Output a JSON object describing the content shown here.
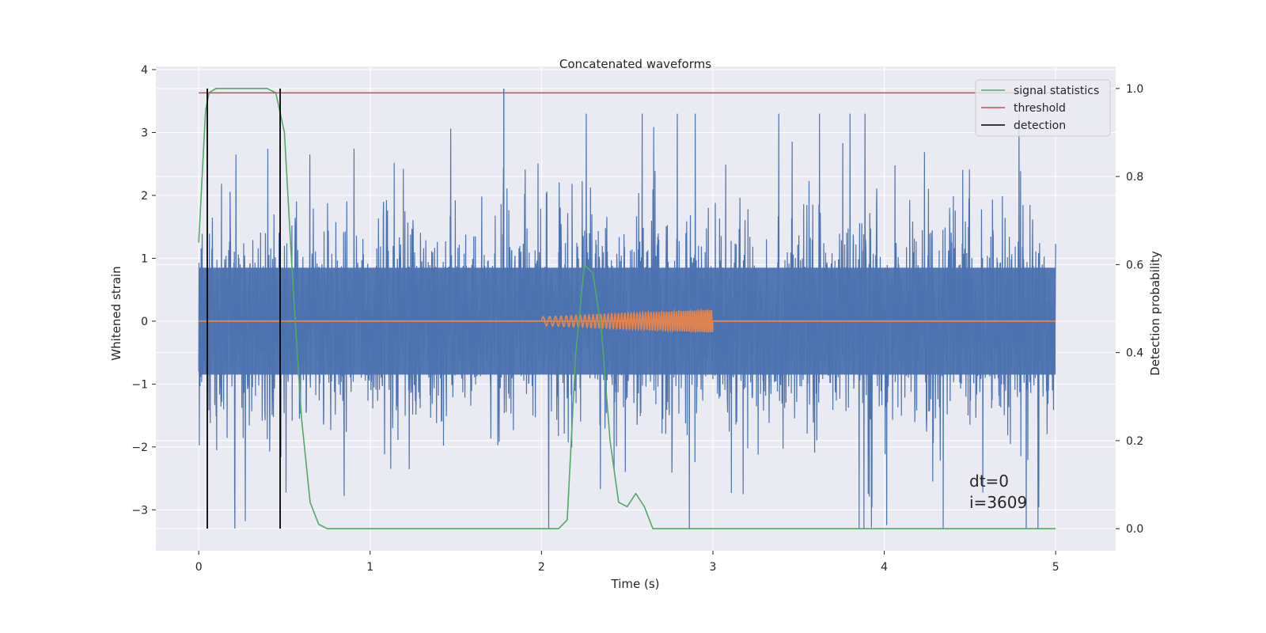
{
  "chart_data": {
    "type": "line",
    "title": "Concatenated waveforms",
    "xlabel": "Time (s)",
    "ylabel": "Whitened strain",
    "y2label": "Detection probability",
    "xlim": [
      -0.25,
      5.35
    ],
    "ylim": [
      -3.65,
      4.05
    ],
    "y2lim": [
      -0.05,
      1.05
    ],
    "x_ticks": [
      0,
      1,
      2,
      3,
      4,
      5
    ],
    "x_tick_labels": [
      "0",
      "1",
      "2",
      "3",
      "4",
      "5"
    ],
    "y_ticks": [
      -3,
      -2,
      -1,
      0,
      1,
      2,
      3,
      4
    ],
    "y_tick_labels": [
      "−3",
      "−2",
      "−1",
      "0",
      "1",
      "2",
      "3",
      "4"
    ],
    "y2_ticks": [
      0.0,
      0.2,
      0.4,
      0.6,
      0.8,
      1.0
    ],
    "y2_tick_labels": [
      "0.0",
      "0.2",
      "0.4",
      "0.6",
      "0.8",
      "1.0"
    ],
    "grid": true,
    "legend_position": "top-right",
    "colors": {
      "strain": "#4c72b0",
      "template": "#dd8452",
      "signal_statistics": "#55a868",
      "threshold": "#c44e52",
      "detection": "#000000",
      "background": "#eaeaf2",
      "grid": "#ffffff"
    },
    "series": [
      {
        "key": "strain",
        "axis": "left",
        "x_range": [
          0,
          5
        ],
        "envelope": [
          -3.3,
          3.7
        ]
      },
      {
        "key": "template",
        "axis": "left",
        "x_range": [
          0,
          5
        ],
        "chirp_window": [
          2.0,
          3.0
        ],
        "chirp_amplitude": [
          0.07,
          0.18
        ]
      },
      {
        "name": "signal statistics",
        "key": "signal_statistics",
        "axis": "right",
        "x": [
          0.0,
          0.02,
          0.04,
          0.06,
          0.1,
          0.2,
          0.3,
          0.4,
          0.45,
          0.5,
          0.55,
          0.6,
          0.65,
          0.7,
          0.75,
          1.0,
          1.5,
          2.0,
          2.1,
          2.15,
          2.2,
          2.25,
          2.3,
          2.35,
          2.4,
          2.45,
          2.5,
          2.55,
          2.6,
          2.65,
          2.7,
          3.0,
          4.0,
          5.0
        ],
        "y": [
          0.65,
          0.8,
          0.95,
          0.99,
          1.0,
          1.0,
          1.0,
          1.0,
          0.99,
          0.9,
          0.55,
          0.25,
          0.06,
          0.01,
          0.0,
          0.0,
          0.0,
          0.0,
          0.0,
          0.02,
          0.4,
          0.6,
          0.58,
          0.45,
          0.2,
          0.06,
          0.05,
          0.08,
          0.05,
          0.0,
          0.0,
          0.0,
          0.0,
          0.0
        ]
      },
      {
        "name": "threshold",
        "key": "threshold",
        "axis": "right",
        "x": [
          0,
          5
        ],
        "y": [
          0.99,
          0.99
        ]
      },
      {
        "name": "detection",
        "key": "detection",
        "axis": "right",
        "x": [
          0.05,
          0.475
        ],
        "y_range": [
          0.0,
          1.0
        ]
      }
    ],
    "annotations": [
      "dt=0",
      "i=3609"
    ]
  }
}
